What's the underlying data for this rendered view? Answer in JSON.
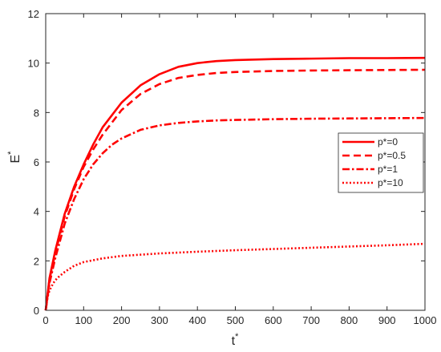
{
  "chart_data": {
    "type": "line",
    "xlabel": "t",
    "xlabel_sup": "*",
    "ylabel": "E",
    "ylabel_sup": "*",
    "xlim": [
      0,
      1000
    ],
    "ylim": [
      0,
      12
    ],
    "xticks": [
      0,
      100,
      200,
      300,
      400,
      500,
      600,
      700,
      800,
      900,
      1000
    ],
    "yticks": [
      0,
      2,
      4,
      6,
      8,
      10,
      12
    ],
    "grid": false,
    "legend_position": "right",
    "line_color": "#ff0000",
    "series": [
      {
        "name": "p*=0",
        "style": "solid",
        "x": [
          0,
          10,
          25,
          50,
          75,
          100,
          125,
          150,
          175,
          200,
          250,
          300,
          350,
          400,
          450,
          500,
          600,
          700,
          800,
          900,
          1000
        ],
        "y": [
          0,
          1.3,
          2.4,
          3.9,
          5.0,
          5.9,
          6.7,
          7.4,
          7.9,
          8.4,
          9.1,
          9.55,
          9.85,
          10.0,
          10.08,
          10.12,
          10.16,
          10.18,
          10.2,
          10.2,
          10.21
        ]
      },
      {
        "name": "p*=0.5",
        "style": "dashed",
        "x": [
          0,
          10,
          25,
          50,
          75,
          100,
          125,
          150,
          175,
          200,
          250,
          300,
          350,
          400,
          450,
          500,
          600,
          700,
          800,
          900,
          1000
        ],
        "y": [
          0,
          1.25,
          2.3,
          3.8,
          4.9,
          5.8,
          6.5,
          7.1,
          7.6,
          8.1,
          8.75,
          9.15,
          9.4,
          9.52,
          9.6,
          9.64,
          9.68,
          9.7,
          9.71,
          9.72,
          9.73
        ]
      },
      {
        "name": "p*=1",
        "style": "dashdot",
        "x": [
          0,
          10,
          25,
          50,
          75,
          100,
          125,
          150,
          175,
          200,
          250,
          300,
          350,
          400,
          450,
          500,
          600,
          700,
          800,
          900,
          1000
        ],
        "y": [
          0,
          1.1,
          2.1,
          3.5,
          4.5,
          5.3,
          5.9,
          6.35,
          6.7,
          6.95,
          7.3,
          7.48,
          7.58,
          7.64,
          7.68,
          7.7,
          7.73,
          7.75,
          7.76,
          7.77,
          7.78
        ]
      },
      {
        "name": "p*=10",
        "style": "dotted",
        "x": [
          0,
          5,
          10,
          20,
          30,
          50,
          75,
          100,
          150,
          200,
          250,
          300,
          400,
          500,
          600,
          700,
          800,
          900,
          1000
        ],
        "y": [
          0,
          0.55,
          0.8,
          1.1,
          1.3,
          1.55,
          1.8,
          1.95,
          2.1,
          2.2,
          2.25,
          2.3,
          2.37,
          2.43,
          2.48,
          2.53,
          2.58,
          2.63,
          2.69
        ]
      }
    ]
  }
}
